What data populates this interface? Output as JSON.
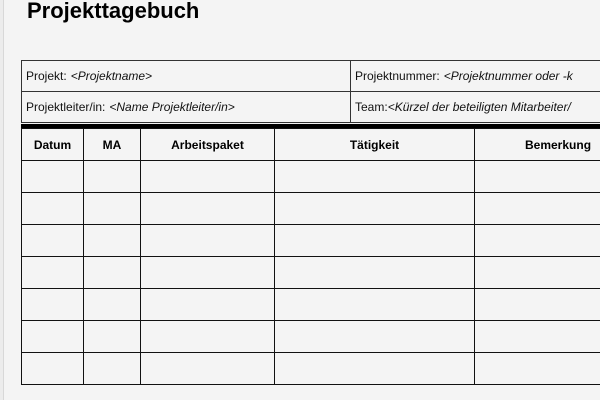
{
  "title": "Projekttagebuch",
  "info": {
    "projekt_label": "Projekt:",
    "projekt_value": "<Projektname>",
    "nummer_label": "Projektnummer:",
    "nummer_value": "<Projektnummer oder -k",
    "leiter_label": "Projektleiter/in:",
    "leiter_value": "<Name Projektleiter/in>",
    "team_label": "Team:",
    "team_value": "<Kürzel der beteiligten Mitarbeiter/"
  },
  "columns": [
    "Datum",
    "MA",
    "Arbeitspaket",
    "Tätigkeit",
    "Bemerkung"
  ]
}
